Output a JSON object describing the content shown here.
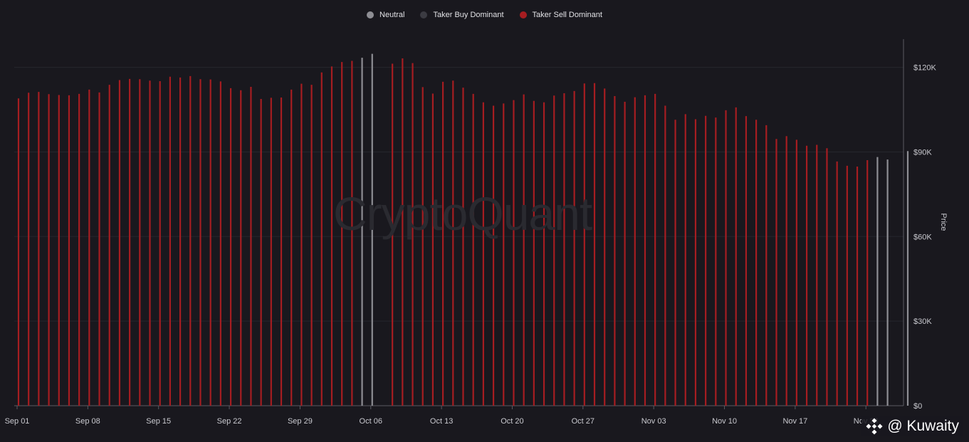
{
  "legend": [
    {
      "label": "Neutral",
      "color": "#8e8e94"
    },
    {
      "label": "Taker Buy Dominant",
      "color": "#3b3b42"
    },
    {
      "label": "Taker Sell Dominant",
      "color": "#a61d21"
    }
  ],
  "watermark": "CryptoQuant",
  "source_tag": {
    "text": "@ Kuwaity"
  },
  "chart_data": {
    "type": "bar",
    "title": "",
    "xlabel": "",
    "ylabel": "Price",
    "ylim": [
      0,
      130000
    ],
    "y_ticks": [
      {
        "value": 0,
        "label": "$0"
      },
      {
        "value": 30000,
        "label": "$30K"
      },
      {
        "value": 60000,
        "label": "$60K"
      },
      {
        "value": 90000,
        "label": "$90K"
      },
      {
        "value": 120000,
        "label": "$120K"
      }
    ],
    "x_ticks": [
      {
        "index": 0,
        "label": "Sep 01"
      },
      {
        "index": 7,
        "label": "Sep 08"
      },
      {
        "index": 14,
        "label": "Sep 15"
      },
      {
        "index": 21,
        "label": "Sep 22"
      },
      {
        "index": 28,
        "label": "Sep 29"
      },
      {
        "index": 35,
        "label": "Oct 06"
      },
      {
        "index": 42,
        "label": "Oct 13"
      },
      {
        "index": 49,
        "label": "Oct 20"
      },
      {
        "index": 56,
        "label": "Oct 27"
      },
      {
        "index": 63,
        "label": "Nov 03"
      },
      {
        "index": 70,
        "label": "Nov 10"
      },
      {
        "index": 77,
        "label": "Nov 17"
      },
      {
        "index": 84,
        "label": "Nov 24"
      }
    ],
    "grid": true,
    "legend_position": "top-center",
    "series": [
      {
        "name": "Price",
        "values": [
          109000,
          111000,
          111300,
          110500,
          110200,
          110100,
          110600,
          112100,
          111100,
          113800,
          115500,
          115900,
          115800,
          115300,
          115100,
          116700,
          116400,
          116900,
          115800,
          115700,
          115000,
          112600,
          111900,
          113100,
          108800,
          109200,
          109300,
          112100,
          114200,
          113800,
          118200,
          120300,
          121900,
          122300,
          123400,
          124800,
          null,
          121300,
          123200,
          121500,
          113000,
          110700,
          114900,
          115300,
          112800,
          110600,
          107600,
          106400,
          107200,
          108400,
          110400,
          108100,
          107600,
          110000,
          110800,
          111600,
          114300,
          114400,
          112500,
          109800,
          107800,
          109400,
          110100,
          110600,
          106400,
          101400,
          103400,
          101600,
          102800,
          102200,
          104800,
          105800,
          102700,
          101400,
          99500,
          94600,
          95600,
          94300,
          92200,
          92500,
          91300,
          86600,
          85100,
          84800,
          87100,
          88200,
          87300,
          null,
          90300
        ],
        "categories": [
          "sell",
          "sell",
          "sell",
          "sell",
          "sell",
          "sell",
          "sell",
          "sell",
          "sell",
          "sell",
          "sell",
          "sell",
          "sell",
          "sell",
          "sell",
          "sell",
          "sell",
          "sell",
          "sell",
          "sell",
          "sell",
          "sell",
          "sell",
          "sell",
          "sell",
          "sell",
          "sell",
          "sell",
          "sell",
          "sell",
          "sell",
          "sell",
          "sell",
          "sell",
          "neutral",
          "neutral",
          "none",
          "sell",
          "sell",
          "sell",
          "sell",
          "sell",
          "sell",
          "sell",
          "sell",
          "sell",
          "sell",
          "sell",
          "sell",
          "sell",
          "sell",
          "sell",
          "sell",
          "sell",
          "sell",
          "sell",
          "sell",
          "sell",
          "sell",
          "sell",
          "sell",
          "sell",
          "sell",
          "sell",
          "sell",
          "sell",
          "sell",
          "sell",
          "sell",
          "sell",
          "sell",
          "sell",
          "sell",
          "sell",
          "sell",
          "sell",
          "sell",
          "sell",
          "sell",
          "sell",
          "sell",
          "sell",
          "sell",
          "sell",
          "sell",
          "neutral",
          "neutral",
          "none",
          "neutral"
        ]
      }
    ],
    "colors": {
      "sell": "#a61d21",
      "neutral": "#8e8e94",
      "buy": "#3b3b42"
    }
  }
}
